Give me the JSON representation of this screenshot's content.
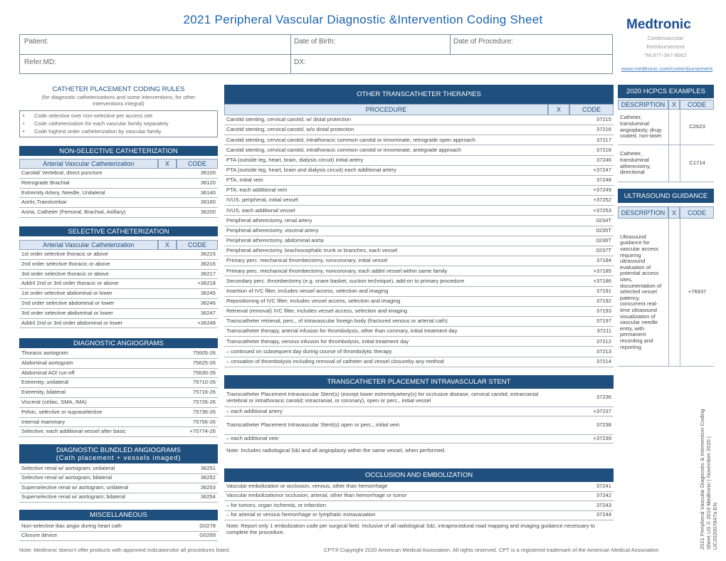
{
  "header": {
    "title": "2021 Peripheral Vascular Diagnostic &Intervention Coding Sheet",
    "logo": "Medtronic",
    "logo_lines": [
      "Cardiovascular",
      "Reimbursement",
      "Tel.877-347-9662"
    ],
    "url": "www.medtronic.com/cvreimbursement"
  },
  "patient_form": {
    "patient": "Patient:",
    "date_of_birth": "Date of Birth:",
    "date_of_procedure": "Date of Procedure:",
    "refer_md": "Refer.MD:",
    "dx": "DX:"
  },
  "catheter_rules": {
    "title": "CATHETER PLACEMENT CODING RULES",
    "subtitle": "(for diagnostic catheterizations and some interventions; for other interventions integral)",
    "items": [
      "Code selective over non-selective per access site",
      "Code catheterization for each vascular family separately",
      "Code highest order catheterization by vascular family"
    ]
  },
  "non_selective": {
    "title": "NON-SELECTIVE CATHETERIZATION",
    "columns": [
      "Arterial Vascular Catheterization",
      "X",
      "CODE"
    ],
    "rows": [
      [
        "Carotid/ Vertebral, direct puncture",
        "36100"
      ],
      [
        "Retrograde Brachial",
        "36120"
      ],
      [
        "Extremity Artery, Needle, Unilateral",
        "36140"
      ],
      [
        "Aortic,Translumbar",
        "36160"
      ],
      [
        "Aorta, Catheter (Femoral, Brachial, Axillary)",
        "36200"
      ]
    ]
  },
  "selective": {
    "title": "SELECTIVE CATHETERIZATION",
    "columns": [
      "Arterial Vascular Catheterization",
      "X",
      "CODE"
    ],
    "rows": [
      [
        "1st order selective thoracic or above",
        "36215"
      ],
      [
        "2nd order selective thoracic or above",
        "36216"
      ],
      [
        "3rd order selective thoracic or above",
        "36217"
      ],
      [
        "Addnl 2nd or 3rd order thoracic or above",
        "+36218"
      ],
      [
        "1st order selective abdominal or lower",
        "36245"
      ],
      [
        "2nd order selective abdominal or lower",
        "36246"
      ],
      [
        "3rd order selective abdominal or lower",
        "36247"
      ],
      [
        "Addnl 2nd or 3rd order abdominal or lower",
        "+36248"
      ]
    ]
  },
  "diagnostic_angiograms": {
    "title": "DIAGNOSTIC ANGIOGRAMS",
    "rows": [
      [
        "Thoracic aortogram",
        "75605-26"
      ],
      [
        "Abdominal aortogram",
        "75625-26"
      ],
      [
        "Abdominal AO/ run-off",
        "75630-26"
      ],
      [
        "Extremity, unilateral",
        "75710-26"
      ],
      [
        "Extremity, bilateral",
        "75716-26"
      ],
      [
        "Visceral (celiac, SMA, IMA)",
        "75726-26"
      ],
      [
        "Pelvic, selective or supraselective",
        "75736-26"
      ],
      [
        "Internal mammary",
        "75756-26"
      ],
      [
        "Selective, each additional vessel after basic",
        "+75774-26"
      ]
    ]
  },
  "bundled_angiograms": {
    "title": "DIAGNOSTIC BUNDLED ANGIOGRAMS",
    "subtitle": "(Cath placement + vessels imaged)",
    "rows": [
      [
        "Selective renal w/ aortogram; unilateral",
        "36251"
      ],
      [
        "Selective renal w/ aortogram; bilateral",
        "36252"
      ],
      [
        "Superselective renal w/ aortogram; unilateral",
        "36253"
      ],
      [
        "Superselective renal w/ aortogram; bilateral",
        "36254"
      ]
    ]
  },
  "miscellaneous": {
    "title": "MISCELLANEOUS",
    "rows": [
      [
        "Non-selective iliac angio during heart cath",
        "G0278"
      ],
      [
        "Closure device",
        "G0269"
      ]
    ]
  },
  "other_therapies": {
    "title": "OTHER TRANSCATHETER THERAPIES",
    "columns": [
      "PROCEDURE",
      "X",
      "CODE"
    ],
    "rows": [
      [
        "Carotid stenting, cervical carotid, w/ distal protection",
        "37215"
      ],
      [
        "Carotid stenting, cervical carotid, w/o distal protection",
        "37216"
      ],
      [
        "Carotid stenting, cervical carotid, intrathoracic common carotid or innominate, retrograde open approach",
        "37217"
      ],
      [
        "Carotid stenting, cervical carotid, intrathoracic common carotid or innominate, antegrade approach",
        "37218"
      ],
      [
        "PTA (outside leg, heart, brain, dialysis circuit) initial artery",
        "37246"
      ],
      [
        "PTA (outside leg, heart, brain and dialysis circuit) each additional artery",
        "+37247"
      ],
      [
        "PTA, initial vein",
        "37248"
      ],
      [
        "PTA, each additional vein",
        "+37249"
      ],
      [
        "IVUS, peripheral, initial vessel",
        "+37252"
      ],
      [
        "IVUS, each additional vessel",
        "+37253"
      ],
      [
        "Peripheral atherectomy, renal artery",
        "0234T"
      ],
      [
        "Peripheral atherectomy, visceral artery",
        "0235T"
      ],
      [
        "Peripheral atherectomy, abdominal aorta",
        "0236T"
      ],
      [
        "Peripheral atherectomy, brachiocephalic trunk or branches, each vessel",
        "0237T"
      ],
      [
        "Primary perc. mechanical thrombectomy, noncoronary, initial vessel",
        "37184"
      ],
      [
        "Primary perc. mechanical thrombectomy, noncoronary, each addnl vessel within same family",
        "+37185"
      ],
      [
        "Secondary perc. thrombectomy (e.g. snare basket, suction technique), add-on to primary procedure",
        "+37186"
      ],
      [
        "Insertion of IVC filter, includes vessel access, selection and imaging",
        "37191"
      ],
      [
        "Repositioning of IVC filter, includes vessel access, selection and imaging",
        "37192"
      ],
      [
        "Retrieval (removal) IVC filter, includes vessel access, selection and imaging",
        "37193"
      ],
      [
        "Transcatheter retrieval, perc., of intravascular foreign body (fractured venous or arterial cath)",
        "37197"
      ],
      [
        "Transcatheter therapy, arterial infusion for thrombolysis, other than coronary, initial treatment day",
        "37211"
      ],
      [
        "Transcatheter therapy, venous infusion for thrombolysis, initial treatment day",
        "37212"
      ],
      [
        "– continued on subsequent day during course of thrombolytic therapy",
        "37213"
      ],
      [
        "– cessation of thrombolysis including removal of catheter and vessel closureby any method",
        "37214"
      ]
    ]
  },
  "stent": {
    "title": "TRANSCATHETER PLACEMENT INTRAVASCULAR STENT",
    "rows": [
      [
        "Transcatheter Placement Intravascular Stent(s) (except lower extremityartery(s) for occlusive disease, cervical carotid, extracranial vertebral or intrathoracic carotid; intracranial, or coronary), open or perc., initial vessel",
        "37236"
      ],
      [
        "– each additional artery",
        "+37237"
      ],
      [
        "Transcatheter Placement Intravascular Stent(s) open or perc., initial vein",
        "37238"
      ],
      [
        "– each additional vein",
        "+37239"
      ]
    ],
    "note": "Note: Includes radiological S&I and all angioplasty within the same vessel, when performed."
  },
  "embolization": {
    "title": "OCCLUSION AND EMBOLIZATION",
    "rows": [
      [
        "Vascular embolization or occlusion, venous, other than hemorrhage",
        "37241"
      ],
      [
        "Vascular embolizationor occlusion, arterial, other than hemorrhage or tumor",
        "37242"
      ],
      [
        "– for tumors, organ ischemia, or infarction",
        "37243"
      ],
      [
        "– for arterial or venous hemorrhage or lymphatic extravasation",
        "37244"
      ]
    ],
    "note": "Note: Report only 1 embolization code per surgical field. Inclusive of all radiological S&I, intraprocedural road mapping and imaging guidance necessary to complete the procedure."
  },
  "hcpcs": {
    "title": "2020 HCPCS EXAMPLES",
    "columns": [
      "DESCRIPTION",
      "X",
      "CODE"
    ],
    "rows": [
      [
        "Catheter, transluminal angioplasty, drug-coated, non-laser",
        "C2623"
      ],
      [
        "Catheter, transluminal atherectomy, directional",
        "C1714"
      ]
    ]
  },
  "ultrasound": {
    "title": "ULTRASOUND GUIDANCE",
    "columns": [
      "DESCRIPTION",
      "X",
      "CODE"
    ],
    "rows": [
      [
        "Ultrasound guidance for vascular access requiring ultrasound evaluation of potential access sites, documentation of selected vessel patency, concurrent real-time ultrasound visualization of vascular needle entry, with permanent recording and reporting",
        "+76937"
      ]
    ]
  },
  "footer": {
    "note": "Note: Medtronic doesn't offer products with approved indicationsfor all procedures listed.",
    "copyright": "CPT® Copyright 2020 American Medical Association. All rights reserved. CPT is a registered trademark of the American Medical Association",
    "side_text": [
      "2021 Peripheral Vascular Diagnostic & Intervention Coding",
      "Sheet US © 2019 Medtronic | November 2020 |",
      "UC202007847a EN"
    ]
  }
}
